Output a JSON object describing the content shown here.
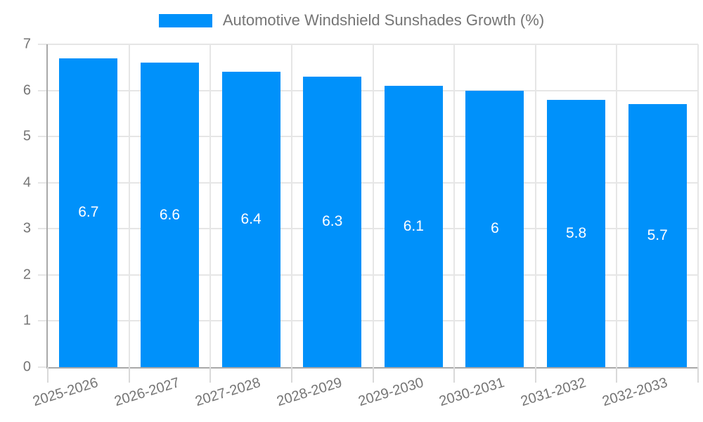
{
  "chart_data": {
    "type": "bar",
    "title": "Automotive Windshield Sunshades Growth (%)",
    "categories": [
      "2025-2026",
      "2026-2027",
      "2027-2028",
      "2028-2029",
      "2029-2030",
      "2030-2031",
      "2031-2032",
      "2032-2033"
    ],
    "values": [
      6.7,
      6.6,
      6.4,
      6.3,
      6.1,
      6,
      5.8,
      5.7
    ],
    "value_labels": [
      "6.7",
      "6.6",
      "6.4",
      "6.3",
      "6.1",
      "6",
      "5.8",
      "5.7"
    ],
    "xlabel": "",
    "ylabel": "",
    "ylim": [
      0,
      7
    ],
    "yticks": [
      0,
      1,
      2,
      3,
      4,
      5,
      6,
      7
    ],
    "grid": true,
    "legend_position": "top",
    "colors": {
      "bar": "#0091fa",
      "grid": "#e6e6e6",
      "axis": "#a9a9a9",
      "bottom_tick": "#d9d9d9",
      "tick_label": "#757575",
      "title": "#757575",
      "value_label": "#ffffff",
      "background": "#ffffff"
    }
  }
}
